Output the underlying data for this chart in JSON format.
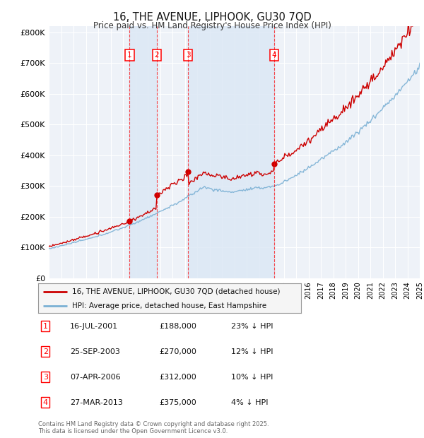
{
  "title": "16, THE AVENUE, LIPHOOK, GU30 7QD",
  "subtitle": "Price paid vs. HM Land Registry's House Price Index (HPI)",
  "ylim": [
    0,
    820000
  ],
  "yticks": [
    0,
    100000,
    200000,
    300000,
    400000,
    500000,
    600000,
    700000,
    800000
  ],
  "ytick_labels": [
    "£0",
    "£100K",
    "£200K",
    "£300K",
    "£400K",
    "£500K",
    "£600K",
    "£700K",
    "£800K"
  ],
  "chart_bg": "#eef2f8",
  "grid_color": "#ffffff",
  "sale_color": "#cc0000",
  "hpi_color": "#7ab0d4",
  "shade_color": "#dce8f5",
  "transactions": [
    {
      "label": "1",
      "date_dec": 2001.54,
      "price": 188000,
      "pct": "23%",
      "date_str": "16-JUL-2001"
    },
    {
      "label": "2",
      "date_dec": 2003.73,
      "price": 270000,
      "pct": "12%",
      "date_str": "25-SEP-2003"
    },
    {
      "label": "3",
      "date_dec": 2006.27,
      "price": 312000,
      "pct": "10%",
      "date_str": "07-APR-2006"
    },
    {
      "label": "4",
      "date_dec": 2013.23,
      "price": 375000,
      "pct": "4%",
      "date_str": "27-MAR-2013"
    }
  ],
  "footer": "Contains HM Land Registry data © Crown copyright and database right 2025.\nThis data is licensed under the Open Government Licence v3.0.",
  "legend_line1": "16, THE AVENUE, LIPHOOK, GU30 7QD (detached house)",
  "legend_line2": "HPI: Average price, detached house, East Hampshire"
}
